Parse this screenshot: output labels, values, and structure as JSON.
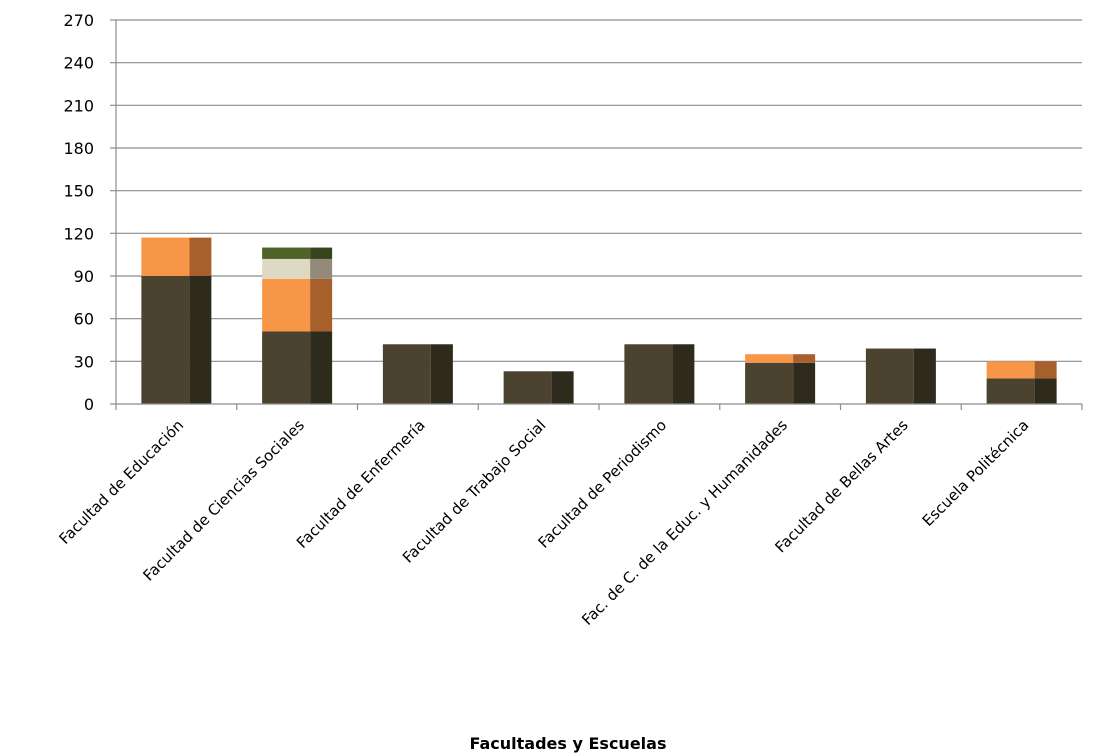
{
  "chart_data": {
    "type": "bar",
    "stacked": true,
    "style": "3d-column",
    "categories": [
      "Facultad de Educación",
      "Facultad de Ciencias Sociales",
      "Facultad de Enfermería",
      "Facultad de Trabajo Social",
      "Facultad de Periodismo",
      "Fac. de C. de la Educ. y Humanidades",
      "Facultad de Bellas Artes",
      "Escuela Politécnica"
    ],
    "series": [
      {
        "color": "#4b4330",
        "side_color": "#2e2b1d",
        "values": [
          90,
          51,
          42,
          23,
          42,
          29,
          39,
          18
        ]
      },
      {
        "color": "#f79646",
        "side_color": "#a7602c",
        "values": [
          27,
          37,
          0,
          0,
          0,
          6,
          0,
          12
        ]
      },
      {
        "color": "#ddd9c3",
        "side_color": "#948a78",
        "values": [
          0,
          14,
          0,
          0,
          0,
          0,
          0,
          0
        ]
      },
      {
        "color": "#4f6228",
        "side_color": "#37441c",
        "values": [
          0,
          8,
          0,
          0,
          0,
          0,
          0,
          0
        ]
      }
    ],
    "y_ticks": [
      0,
      30,
      60,
      90,
      120,
      150,
      180,
      210,
      240,
      270
    ],
    "ylim": [
      0,
      270
    ],
    "xlabel": "Facultades  y Escuelas",
    "ylabel": "",
    "grid": true,
    "legend": "none"
  }
}
